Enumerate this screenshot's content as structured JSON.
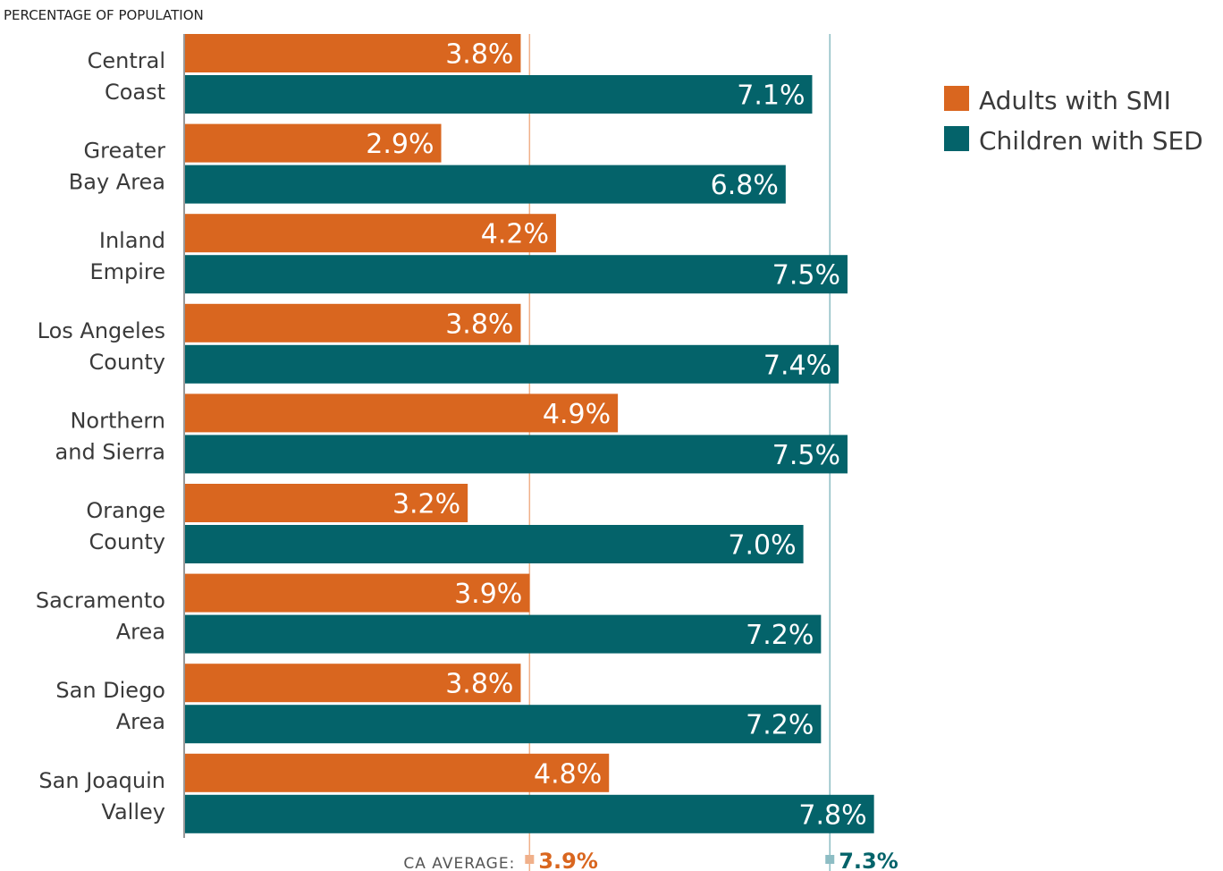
{
  "chart_data": {
    "type": "bar",
    "orientation": "horizontal",
    "axis_title": "PERCENTAGE OF POPULATION",
    "categories": [
      [
        "Central",
        "Coast"
      ],
      [
        "Greater",
        "Bay Area"
      ],
      [
        "Inland",
        "Empire"
      ],
      [
        "Los Angeles",
        "County"
      ],
      [
        "Northern",
        "and Sierra"
      ],
      [
        "Orange",
        "County"
      ],
      [
        "Sacramento",
        "Area"
      ],
      [
        "San Diego",
        "Area"
      ],
      [
        "San Joaquin",
        "Valley"
      ]
    ],
    "series": [
      {
        "name": "Adults with SMI",
        "color": "#d9661f",
        "values": [
          3.8,
          2.9,
          4.2,
          3.8,
          4.9,
          3.2,
          3.9,
          3.8,
          4.8
        ],
        "labels": [
          "3.8%",
          "2.9%",
          "4.2%",
          "3.8%",
          "4.9%",
          "3.2%",
          "3.9%",
          "3.8%",
          "4.8%"
        ]
      },
      {
        "name": "Children with SED",
        "color": "#04636a",
        "values": [
          7.1,
          6.8,
          7.5,
          7.4,
          7.5,
          7.0,
          7.2,
          7.2,
          7.8
        ],
        "labels": [
          "7.1%",
          "6.8%",
          "7.5%",
          "7.4%",
          "7.5%",
          "7.0%",
          "7.2%",
          "7.2%",
          "7.8%"
        ]
      }
    ],
    "reference_lines": {
      "label": "CA AVERAGE:",
      "lines": [
        {
          "series": "Adults with SMI",
          "value": 3.9,
          "label": "3.9%",
          "color": "#f0b08a",
          "text_color": "#d9661f"
        },
        {
          "series": "Children with SED",
          "value": 7.3,
          "label": "7.3%",
          "color": "#8dbdc4",
          "text_color": "#04636a"
        }
      ]
    },
    "xlim": [
      0,
      10
    ],
    "grid": false,
    "legend_position": "top-right"
  }
}
